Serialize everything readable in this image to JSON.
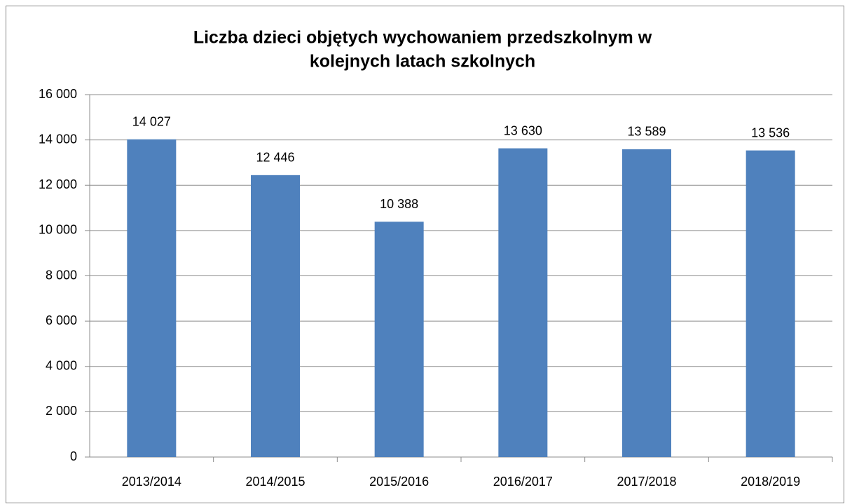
{
  "chart_data": {
    "type": "bar",
    "title": [
      "Liczba dzieci objętych wychowaniem przedszkolnym w",
      "kolejnych latach szkolnych"
    ],
    "categories": [
      "2013/2014",
      "2014/2015",
      "2015/2016",
      "2016/2017",
      "2017/2018",
      "2018/2019"
    ],
    "values": [
      14027,
      12446,
      10388,
      13630,
      13589,
      13536
    ],
    "value_labels": [
      "14 027",
      "12 446",
      "10 388",
      "13 630",
      "13 589",
      "13 536"
    ],
    "color": "#4f81bd",
    "ylim": [
      0,
      16000
    ],
    "yticks": [
      0,
      {
        "value": 2000,
        "label": "2 000"
      },
      {
        "value": 4000,
        "label": "4 000"
      },
      {
        "value": 6000,
        "label": "6 000"
      },
      {
        "value": 8000,
        "label": "8 000"
      },
      {
        "value": 10000,
        "label": "10 000"
      },
      {
        "value": 12000,
        "label": "12 000"
      },
      {
        "value": 14000,
        "label": "14 000"
      },
      {
        "value": 16000,
        "label": "16 000"
      }
    ],
    "grid": true
  }
}
